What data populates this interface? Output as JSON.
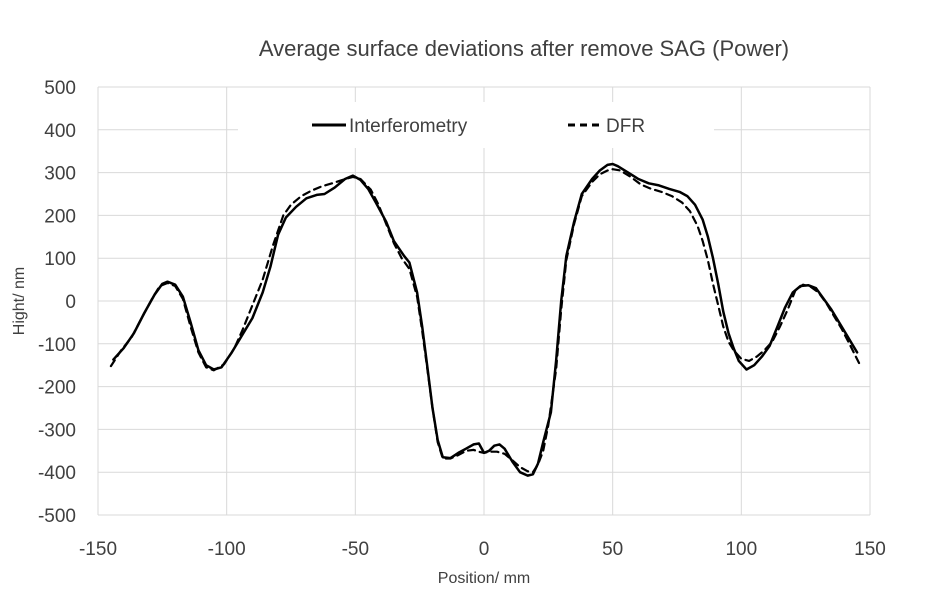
{
  "chart_data": {
    "type": "line",
    "title": "Average surface deviations after remove SAG (Power)",
    "xlabel": "Position/ mm",
    "ylabel": "Hight/ nm",
    "xlim": [
      -150,
      150
    ],
    "ylim": [
      -500,
      500
    ],
    "x_ticks": [
      -150,
      -100,
      -50,
      0,
      50,
      100,
      150
    ],
    "y_ticks": [
      -500,
      -400,
      -300,
      -200,
      -100,
      0,
      100,
      200,
      300,
      400,
      500
    ],
    "grid": true,
    "legend_position": "top-center",
    "series": [
      {
        "name": "Interferometry",
        "style": "solid",
        "color": "#000000",
        "points": [
          [
            -144,
            -137
          ],
          [
            -140,
            -110
          ],
          [
            -136,
            -75
          ],
          [
            -132,
            -28
          ],
          [
            -128,
            15
          ],
          [
            -125,
            40
          ],
          [
            -123,
            45
          ],
          [
            -120,
            38
          ],
          [
            -117,
            10
          ],
          [
            -114,
            -50
          ],
          [
            -111,
            -115
          ],
          [
            -108,
            -150
          ],
          [
            -105,
            -160
          ],
          [
            -102,
            -155
          ],
          [
            -98,
            -120
          ],
          [
            -94,
            -80
          ],
          [
            -90,
            -40
          ],
          [
            -86,
            20
          ],
          [
            -83,
            80
          ],
          [
            -80,
            155
          ],
          [
            -77,
            195
          ],
          [
            -73,
            220
          ],
          [
            -69,
            240
          ],
          [
            -65,
            248
          ],
          [
            -62,
            250
          ],
          [
            -58,
            265
          ],
          [
            -54,
            285
          ],
          [
            -51,
            293
          ],
          [
            -48,
            283
          ],
          [
            -45,
            262
          ],
          [
            -42,
            230
          ],
          [
            -38,
            185
          ],
          [
            -35,
            140
          ],
          [
            -31,
            105
          ],
          [
            -29,
            90
          ],
          [
            -26,
            20
          ],
          [
            -24,
            -60
          ],
          [
            -22,
            -155
          ],
          [
            -20,
            -250
          ],
          [
            -18,
            -325
          ],
          [
            -16,
            -365
          ],
          [
            -13,
            -367
          ],
          [
            -10,
            -355
          ],
          [
            -7,
            -345
          ],
          [
            -4,
            -335
          ],
          [
            -2,
            -333
          ],
          [
            0,
            -355
          ],
          [
            2,
            -350
          ],
          [
            4,
            -338
          ],
          [
            6,
            -335
          ],
          [
            8,
            -345
          ],
          [
            11,
            -375
          ],
          [
            14,
            -400
          ],
          [
            17,
            -408
          ],
          [
            19,
            -405
          ],
          [
            21,
            -380
          ],
          [
            23,
            -330
          ],
          [
            26,
            -260
          ],
          [
            28,
            -140
          ],
          [
            30,
            0
          ],
          [
            32,
            105
          ],
          [
            35,
            185
          ],
          [
            38,
            250
          ],
          [
            42,
            285
          ],
          [
            45,
            305
          ],
          [
            48,
            318
          ],
          [
            50,
            320
          ],
          [
            52,
            315
          ],
          [
            56,
            300
          ],
          [
            60,
            285
          ],
          [
            64,
            275
          ],
          [
            68,
            270
          ],
          [
            72,
            262
          ],
          [
            76,
            255
          ],
          [
            79,
            245
          ],
          [
            82,
            225
          ],
          [
            85,
            190
          ],
          [
            87,
            150
          ],
          [
            89,
            100
          ],
          [
            91,
            40
          ],
          [
            93,
            -25
          ],
          [
            95,
            -75
          ],
          [
            97,
            -110
          ],
          [
            99,
            -140
          ],
          [
            102,
            -160
          ],
          [
            105,
            -150
          ],
          [
            108,
            -130
          ],
          [
            111,
            -105
          ],
          [
            114,
            -60
          ],
          [
            117,
            -15
          ],
          [
            120,
            20
          ],
          [
            123,
            35
          ],
          [
            126,
            37
          ],
          [
            129,
            30
          ],
          [
            132,
            5
          ],
          [
            135,
            -20
          ],
          [
            138,
            -50
          ],
          [
            141,
            -80
          ],
          [
            145,
            -120
          ]
        ]
      },
      {
        "name": "DFR",
        "style": "dashed",
        "color": "#000000",
        "points": [
          [
            -145,
            -152
          ],
          [
            -141,
            -115
          ],
          [
            -137,
            -85
          ],
          [
            -133,
            -40
          ],
          [
            -129,
            5
          ],
          [
            -126,
            35
          ],
          [
            -123,
            42
          ],
          [
            -120,
            35
          ],
          [
            -117,
            5
          ],
          [
            -114,
            -60
          ],
          [
            -111,
            -120
          ],
          [
            -108,
            -155
          ],
          [
            -105,
            -162
          ],
          [
            -101,
            -148
          ],
          [
            -97,
            -110
          ],
          [
            -94,
            -70
          ],
          [
            -90,
            -10
          ],
          [
            -86,
            50
          ],
          [
            -82,
            130
          ],
          [
            -78,
            200
          ],
          [
            -75,
            225
          ],
          [
            -71,
            245
          ],
          [
            -67,
            258
          ],
          [
            -63,
            268
          ],
          [
            -59,
            275
          ],
          [
            -55,
            283
          ],
          [
            -51,
            290
          ],
          [
            -48,
            285
          ],
          [
            -44,
            260
          ],
          [
            -41,
            225
          ],
          [
            -38,
            180
          ],
          [
            -35,
            135
          ],
          [
            -32,
            100
          ],
          [
            -29,
            75
          ],
          [
            -26,
            10
          ],
          [
            -24,
            -70
          ],
          [
            -22,
            -160
          ],
          [
            -20,
            -250
          ],
          [
            -18,
            -330
          ],
          [
            -16,
            -368
          ],
          [
            -13,
            -368
          ],
          [
            -10,
            -360
          ],
          [
            -7,
            -350
          ],
          [
            -4,
            -348
          ],
          [
            -2,
            -352
          ],
          [
            0,
            -355
          ],
          [
            2,
            -352
          ],
          [
            5,
            -352
          ],
          [
            8,
            -357
          ],
          [
            11,
            -372
          ],
          [
            14,
            -388
          ],
          [
            17,
            -398
          ],
          [
            19,
            -400
          ],
          [
            21,
            -382
          ],
          [
            23,
            -350
          ],
          [
            25,
            -290
          ],
          [
            28,
            -160
          ],
          [
            30,
            -20
          ],
          [
            32,
            95
          ],
          [
            35,
            180
          ],
          [
            38,
            245
          ],
          [
            42,
            278
          ],
          [
            45,
            296
          ],
          [
            48,
            305
          ],
          [
            50,
            308
          ],
          [
            53,
            305
          ],
          [
            57,
            290
          ],
          [
            61,
            272
          ],
          [
            65,
            262
          ],
          [
            69,
            255
          ],
          [
            73,
            245
          ],
          [
            77,
            230
          ],
          [
            80,
            210
          ],
          [
            83,
            175
          ],
          [
            85,
            140
          ],
          [
            87,
            95
          ],
          [
            89,
            40
          ],
          [
            91,
            -10
          ],
          [
            93,
            -60
          ],
          [
            95,
            -95
          ],
          [
            97,
            -115
          ],
          [
            100,
            -135
          ],
          [
            103,
            -140
          ],
          [
            106,
            -130
          ],
          [
            109,
            -115
          ],
          [
            112,
            -95
          ],
          [
            115,
            -60
          ],
          [
            118,
            -20
          ],
          [
            121,
            25
          ],
          [
            124,
            38
          ],
          [
            127,
            33
          ],
          [
            130,
            20
          ],
          [
            133,
            -5
          ],
          [
            136,
            -35
          ],
          [
            139,
            -65
          ],
          [
            142,
            -100
          ],
          [
            146,
            -148
          ]
        ]
      }
    ]
  }
}
